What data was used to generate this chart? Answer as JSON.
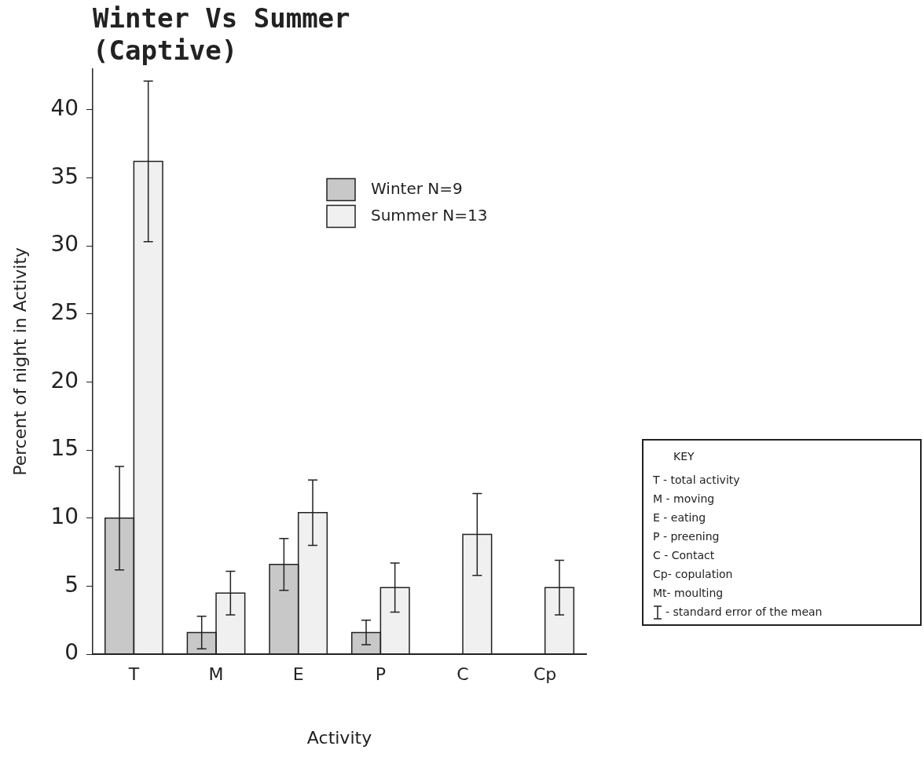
{
  "chart_data": {
    "type": "bar",
    "title": "Winter Vs Summer (Captive)",
    "xlabel": "Activity",
    "ylabel": "Percent of night in Activity",
    "categories": [
      "T",
      "M",
      "E",
      "P",
      "C",
      "Cp"
    ],
    "series": [
      {
        "name": "Winter N=9",
        "color": "#c8c8c8",
        "values": [
          10,
          1.6,
          6.6,
          1.6,
          null,
          null
        ],
        "errors": [
          3.8,
          1.2,
          1.9,
          0.9,
          null,
          null
        ]
      },
      {
        "name": "Summer N=13",
        "color": "#f0f0f0",
        "values": [
          36.2,
          4.5,
          10.4,
          4.9,
          8.8,
          4.9
        ],
        "errors": [
          5.9,
          1.6,
          2.4,
          1.8,
          3,
          2
        ]
      }
    ],
    "ylim": [
      0,
      43
    ],
    "yticks": [
      0,
      5,
      10,
      15,
      20,
      25,
      30,
      35,
      40
    ],
    "grid": false,
    "legend": "top right",
    "annotations": [
      "KEY",
      "T  -  total  activity",
      "M  -  moving",
      "E  -  eating",
      "P  -  preening",
      "C  -  Contact",
      "Cp-   copulation",
      "Mt-   moulting",
      "-  standard error of the mean"
    ]
  }
}
